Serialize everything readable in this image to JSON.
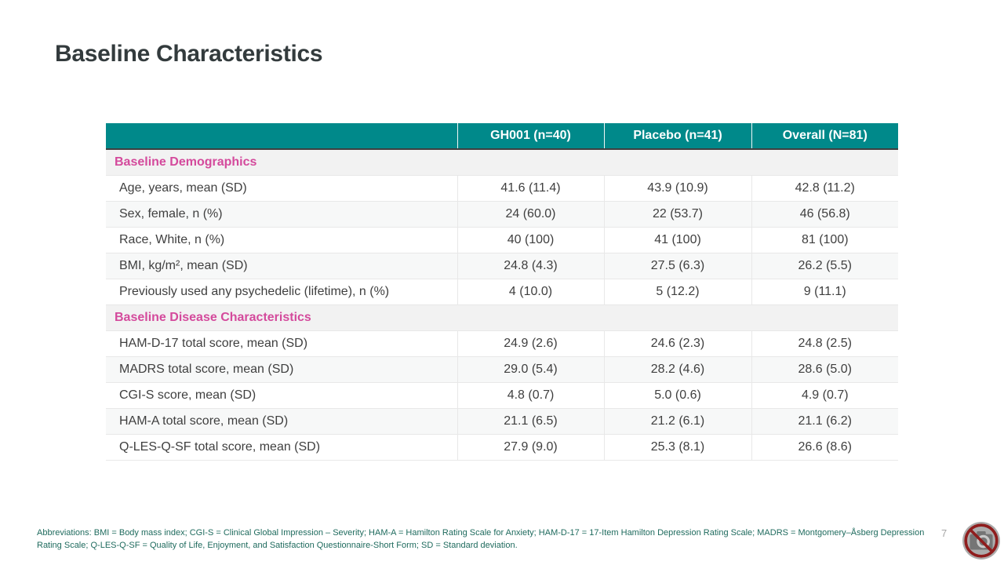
{
  "slide": {
    "title": "Baseline Characteristics",
    "page_number": "7"
  },
  "table": {
    "columns": [
      "",
      "GH001 (n=40)",
      "Placebo (n=41)",
      "Overall (N=81)"
    ],
    "sections": [
      {
        "header": "Baseline Demographics",
        "rows": [
          {
            "label": "Age, years, mean (SD)",
            "values": [
              "41.6 (11.4)",
              "43.9 (10.9)",
              "42.8 (11.2)"
            ]
          },
          {
            "label": "Sex, female, n (%)",
            "values": [
              "24 (60.0)",
              "22 (53.7)",
              "46 (56.8)"
            ]
          },
          {
            "label": "Race, White, n (%)",
            "values": [
              "40 (100)",
              "41 (100)",
              "81 (100)"
            ]
          },
          {
            "label": "BMI, kg/m², mean (SD)",
            "values": [
              "24.8 (4.3)",
              "27.5 (6.3)",
              "26.2 (5.5)"
            ]
          },
          {
            "label": "Previously used any psychedelic (lifetime), n (%)",
            "values": [
              "4 (10.0)",
              "5 (12.2)",
              "9 (11.1)"
            ]
          }
        ]
      },
      {
        "header": "Baseline Disease Characteristics",
        "rows": [
          {
            "label": "HAM-D-17 total score, mean (SD)",
            "values": [
              "24.9 (2.6)",
              "24.6 (2.3)",
              "24.8 (2.5)"
            ]
          },
          {
            "label": "MADRS total score, mean (SD)",
            "values": [
              "29.0 (5.4)",
              "28.2 (4.6)",
              "28.6 (5.0)"
            ]
          },
          {
            "label": "CGI-S score, mean (SD)",
            "values": [
              "4.8 (0.7)",
              "5.0 (0.6)",
              "4.9 (0.7)"
            ]
          },
          {
            "label": "HAM-A total score, mean (SD)",
            "values": [
              "21.1 (6.5)",
              "21.2 (6.1)",
              "21.1 (6.2)"
            ]
          },
          {
            "label": "Q-LES-Q-SF total score, mean (SD)",
            "values": [
              "27.9 (9.0)",
              "25.3 (8.1)",
              "26.6 (8.6)"
            ]
          }
        ]
      }
    ]
  },
  "footer": {
    "abbreviations": "Abbreviations: BMI = Body mass index; CGI-S = Clinical Global Impression – Severity; HAM-A = Hamilton Rating Scale for Anxiety; HAM-D-17 = 17-Item Hamilton Depression Rating Scale; MADRS = Montgomery–Åsberg Depression Rating Scale; Q-LES-Q-SF = Quality of Life, Enjoyment, and Satisfaction Questionnaire-Short Form; SD = Standard deviation."
  },
  "icons": {
    "logo": "no-camera-icon"
  },
  "colors": {
    "header_teal": "#00898A",
    "section_pink": "#D44A9C",
    "section_bg": "#F2F2F2",
    "band_bg": "#F7F8F8",
    "body_text": "#3F3F3F",
    "footnote_teal": "#1F6B5E",
    "page_number_gray": "#A6A6A6",
    "prohibition_red": "#8F1D1D"
  }
}
